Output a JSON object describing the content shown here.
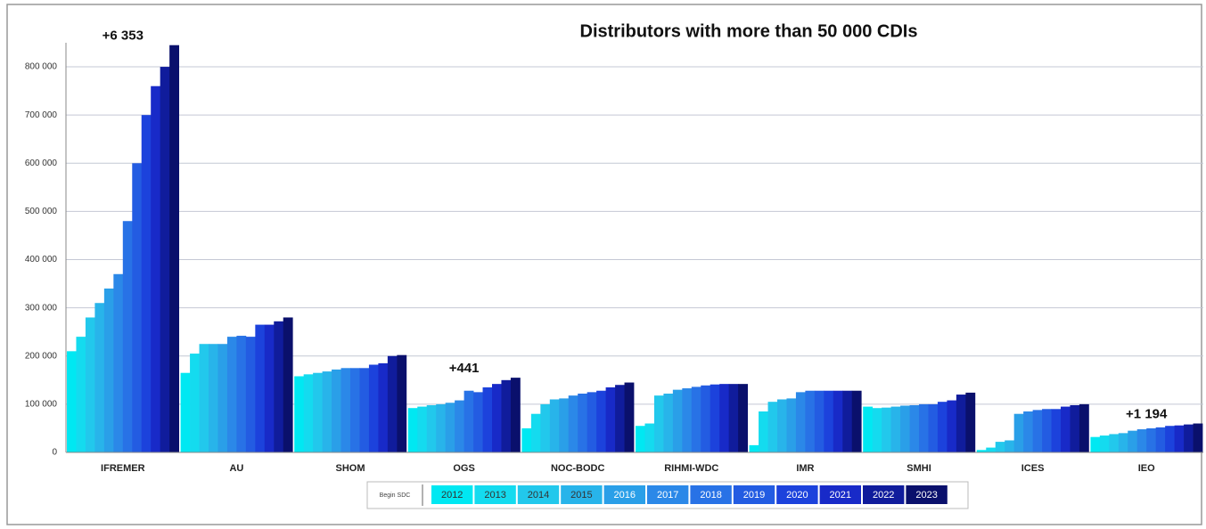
{
  "chart_data": {
    "type": "bar",
    "title": "Distributors with more than 50 000 CDIs",
    "categories": [
      "IFREMER",
      "AU",
      "SHOM",
      "OGS",
      "NOC-BODC",
      "RIHMI-WDC",
      "IMR",
      "SMHI",
      "ICES",
      "IEO"
    ],
    "legend_title": "Begin SDC",
    "series": [
      {
        "name": "2012",
        "color": "#00e8f2",
        "values": [
          210000,
          165000,
          158000,
          92000,
          50000,
          55000,
          15000,
          95000,
          5000,
          32000
        ]
      },
      {
        "name": "2013",
        "color": "#14dbef",
        "values": [
          240000,
          205000,
          162000,
          95000,
          80000,
          60000,
          85000,
          92000,
          10000,
          35000
        ]
      },
      {
        "name": "2014",
        "color": "#22c8ec",
        "values": [
          280000,
          225000,
          165000,
          98000,
          100000,
          118000,
          105000,
          93000,
          22000,
          38000
        ]
      },
      {
        "name": "2015",
        "color": "#28b4ea",
        "values": [
          310000,
          225000,
          168000,
          100000,
          110000,
          122000,
          110000,
          95000,
          25000,
          40000
        ]
      },
      {
        "name": "2016",
        "color": "#2a9fe8",
        "values": [
          340000,
          225000,
          172000,
          103000,
          112000,
          130000,
          112000,
          97000,
          80000,
          45000
        ]
      },
      {
        "name": "2017",
        "color": "#2b88e8",
        "values": [
          370000,
          240000,
          175000,
          108000,
          118000,
          133000,
          125000,
          98000,
          85000,
          48000
        ]
      },
      {
        "name": "2018",
        "color": "#2872e6",
        "values": [
          480000,
          242000,
          175000,
          128000,
          122000,
          136000,
          128000,
          100000,
          88000,
          50000
        ]
      },
      {
        "name": "2019",
        "color": "#235ce2",
        "values": [
          600000,
          240000,
          175000,
          125000,
          125000,
          139000,
          128000,
          100000,
          90000,
          52000
        ]
      },
      {
        "name": "2020",
        "color": "#1c42dc",
        "values": [
          700000,
          265000,
          182000,
          135000,
          128000,
          141000,
          128000,
          105000,
          90000,
          55000
        ]
      },
      {
        "name": "2021",
        "color": "#182ac8",
        "values": [
          760000,
          265000,
          185000,
          142000,
          135000,
          142000,
          128000,
          108000,
          95000,
          56000
        ]
      },
      {
        "name": "2022",
        "color": "#101c9c",
        "values": [
          800000,
          272000,
          200000,
          150000,
          140000,
          142000,
          128000,
          120000,
          98000,
          58000
        ]
      },
      {
        "name": "2023",
        "color": "#0a106c",
        "values": [
          845000,
          280000,
          202000,
          155000,
          145000,
          142000,
          128000,
          124000,
          100000,
          60000
        ]
      }
    ],
    "annotations": [
      {
        "text": "+6 353",
        "category": "IFREMER"
      },
      {
        "text": "+441",
        "category": "OGS"
      },
      {
        "text": "+1 194",
        "category": "IEO"
      }
    ],
    "ylim": [
      0,
      850000
    ],
    "yticks": [
      0,
      {
        "value": 100000,
        "label": "100 000"
      },
      {
        "value": 200000,
        "label": "200 000"
      },
      {
        "value": 300000,
        "label": "300 000"
      },
      {
        "value": 400000,
        "label": "400 000"
      },
      {
        "value": 500000,
        "label": "500 000"
      },
      {
        "value": 600000,
        "label": "600 000"
      },
      {
        "value": 700000,
        "label": "700 000"
      },
      {
        "value": 800000,
        "label": "800 000"
      }
    ],
    "grid": true
  }
}
